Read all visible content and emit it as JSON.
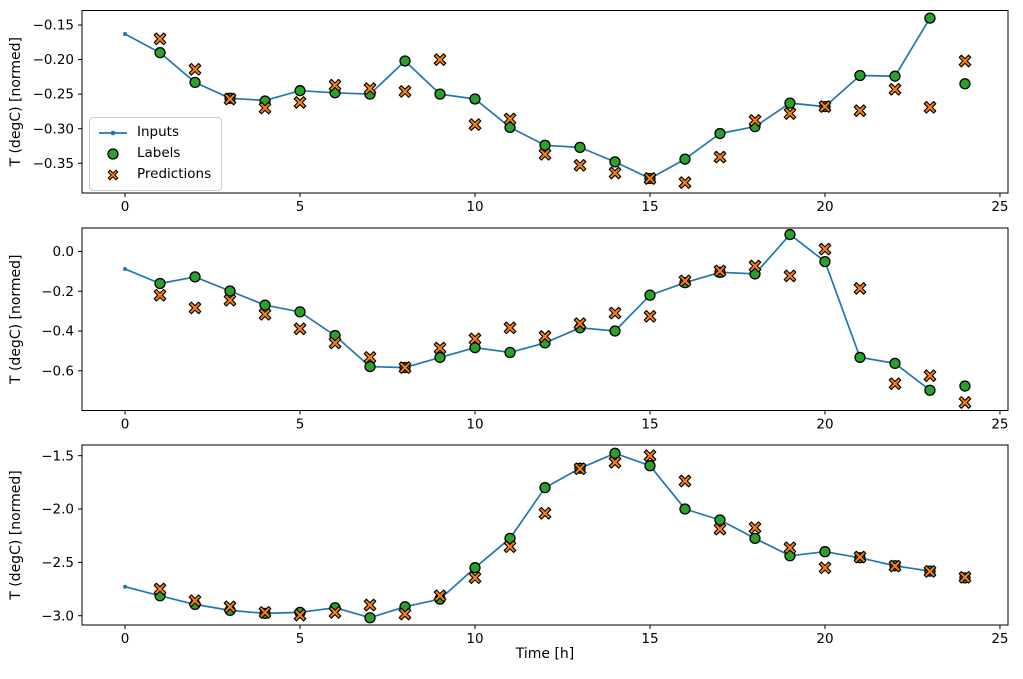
{
  "figure": {
    "xlabel": "Time [h]",
    "ylabel": "T (degC) [normed]",
    "palette": {
      "inputs_line": "#1f77b4",
      "labels_marker": "#2ca02c",
      "predictions_marker": "#ff7f0e",
      "marker_edge": "#000000",
      "background": "#ffffff",
      "legend_border": "#cccccc"
    },
    "legend": {
      "location": "left-middle of first subplot",
      "entries": [
        {
          "label": "Inputs",
          "marker": "line-with-dot"
        },
        {
          "label": "Labels",
          "marker": "filled-circle"
        },
        {
          "label": "Predictions",
          "marker": "thick-x"
        }
      ]
    }
  },
  "chart_data": [
    {
      "type": "line",
      "subplot": 1,
      "ylabel": "T (degC) [normed]",
      "xlabel": "",
      "grid": false,
      "xlim": [
        -1.23,
        25.23
      ],
      "ylim": [
        -0.393,
        -0.129
      ],
      "xticks": [
        0,
        5,
        10,
        15,
        20,
        25
      ],
      "xtick_labels": [
        "0",
        "5",
        "10",
        "15",
        "20",
        "25"
      ],
      "ytick_values": [
        -0.15,
        -0.2,
        -0.25,
        -0.3,
        -0.35
      ],
      "ytick_labels": [
        "−0.15",
        "−0.20",
        "−0.25",
        "−0.30",
        "−0.35"
      ],
      "series": [
        {
          "name": "Inputs",
          "type": "line+dot",
          "x": [
            0,
            1,
            2,
            3,
            4,
            5,
            6,
            7,
            8,
            9,
            10,
            11,
            12,
            13,
            14,
            15,
            16,
            17,
            18,
            19,
            20,
            21,
            22,
            23
          ],
          "y": [
            -0.163,
            -0.19,
            -0.233,
            -0.256,
            -0.259,
            -0.245,
            -0.248,
            -0.25,
            -0.202,
            -0.25,
            -0.257,
            -0.298,
            -0.324,
            -0.327,
            -0.348,
            -0.372,
            -0.344,
            -0.307,
            -0.297,
            -0.263,
            -0.268,
            -0.223,
            -0.224,
            -0.14
          ]
        },
        {
          "name": "Labels",
          "type": "scatter",
          "marker": "circle",
          "x": [
            1,
            2,
            3,
            4,
            5,
            6,
            7,
            8,
            9,
            10,
            11,
            12,
            13,
            14,
            15,
            16,
            17,
            18,
            19,
            20,
            21,
            22,
            23,
            24
          ],
          "y": [
            -0.19,
            -0.233,
            -0.256,
            -0.26,
            -0.245,
            -0.248,
            -0.25,
            -0.202,
            -0.25,
            -0.257,
            -0.298,
            -0.324,
            -0.327,
            -0.348,
            -0.372,
            -0.344,
            -0.307,
            -0.297,
            -0.263,
            -0.268,
            -0.223,
            -0.224,
            -0.14,
            -0.235
          ]
        },
        {
          "name": "Predictions",
          "type": "scatter",
          "marker": "X",
          "x": [
            1,
            2,
            3,
            4,
            5,
            6,
            7,
            8,
            9,
            10,
            11,
            12,
            13,
            14,
            15,
            16,
            17,
            18,
            19,
            20,
            21,
            22,
            23,
            24
          ],
          "y": [
            -0.17,
            -0.214,
            -0.257,
            -0.27,
            -0.262,
            -0.237,
            -0.242,
            -0.246,
            -0.2,
            -0.294,
            -0.286,
            -0.337,
            -0.353,
            -0.364,
            -0.372,
            -0.378,
            -0.341,
            -0.288,
            -0.278,
            -0.268,
            -0.274,
            -0.243,
            -0.269,
            -0.202
          ]
        }
      ]
    },
    {
      "type": "line",
      "subplot": 2,
      "ylabel": "T (degC) [normed]",
      "xlabel": "",
      "grid": false,
      "xlim": [
        -1.23,
        25.23
      ],
      "ylim": [
        -0.8,
        0.118
      ],
      "xticks": [
        0,
        5,
        10,
        15,
        20,
        25
      ],
      "xtick_labels": [
        "0",
        "5",
        "10",
        "15",
        "20",
        "25"
      ],
      "ytick_values": [
        0.0,
        -0.2,
        -0.4,
        -0.6
      ],
      "ytick_labels": [
        "0.0",
        "−0.2",
        "−0.4",
        "−0.6"
      ],
      "series": [
        {
          "name": "Inputs",
          "type": "line+dot",
          "x": [
            0,
            1,
            2,
            3,
            4,
            5,
            6,
            7,
            8,
            9,
            10,
            11,
            12,
            13,
            14,
            15,
            16,
            17,
            18,
            19,
            20,
            21,
            22,
            23
          ],
          "y": [
            -0.088,
            -0.161,
            -0.128,
            -0.199,
            -0.27,
            -0.304,
            -0.423,
            -0.579,
            -0.584,
            -0.533,
            -0.484,
            -0.508,
            -0.46,
            -0.384,
            -0.4,
            -0.22,
            -0.157,
            -0.105,
            -0.113,
            0.085,
            -0.051,
            -0.533,
            -0.563,
            -0.698
          ]
        },
        {
          "name": "Labels",
          "type": "scatter",
          "marker": "circle",
          "x": [
            1,
            2,
            3,
            4,
            5,
            6,
            7,
            8,
            9,
            10,
            11,
            12,
            13,
            14,
            15,
            16,
            17,
            18,
            19,
            20,
            21,
            22,
            23,
            24
          ],
          "y": [
            -0.161,
            -0.128,
            -0.199,
            -0.27,
            -0.304,
            -0.423,
            -0.579,
            -0.584,
            -0.533,
            -0.484,
            -0.508,
            -0.46,
            -0.384,
            -0.4,
            -0.22,
            -0.157,
            -0.105,
            -0.113,
            0.085,
            -0.051,
            -0.533,
            -0.563,
            -0.698,
            -0.677
          ]
        },
        {
          "name": "Predictions",
          "type": "scatter",
          "marker": "X",
          "x": [
            1,
            2,
            3,
            4,
            5,
            6,
            7,
            8,
            9,
            10,
            11,
            12,
            13,
            14,
            15,
            16,
            17,
            18,
            19,
            20,
            21,
            22,
            23,
            24
          ],
          "y": [
            -0.22,
            -0.284,
            -0.245,
            -0.316,
            -0.389,
            -0.46,
            -0.533,
            -0.584,
            -0.486,
            -0.44,
            -0.384,
            -0.428,
            -0.363,
            -0.31,
            -0.326,
            -0.148,
            -0.098,
            -0.073,
            -0.123,
            0.012,
            -0.186,
            -0.665,
            -0.625,
            -0.76
          ]
        }
      ]
    },
    {
      "type": "line",
      "subplot": 3,
      "ylabel": "T (degC) [normed]",
      "xlabel": "Time [h]",
      "grid": false,
      "xlim": [
        -1.23,
        25.23
      ],
      "ylim": [
        -3.087,
        -1.4
      ],
      "xticks": [
        0,
        5,
        10,
        15,
        20,
        25
      ],
      "xtick_labels": [
        "0",
        "5",
        "10",
        "15",
        "20",
        "25"
      ],
      "ytick_values": [
        -1.5,
        -2.0,
        -2.5,
        -3.0
      ],
      "ytick_labels": [
        "−1.5",
        "−2.0",
        "−2.5",
        "−3.0"
      ],
      "series": [
        {
          "name": "Inputs",
          "type": "line+dot",
          "x": [
            0,
            1,
            2,
            3,
            4,
            5,
            6,
            7,
            8,
            9,
            10,
            11,
            12,
            13,
            14,
            15,
            16,
            17,
            18,
            19,
            20,
            21,
            22,
            23
          ],
          "y": [
            -2.728,
            -2.813,
            -2.894,
            -2.95,
            -2.978,
            -2.969,
            -2.925,
            -3.019,
            -2.916,
            -2.844,
            -2.55,
            -2.275,
            -1.8,
            -1.618,
            -1.478,
            -1.594,
            -2.0,
            -2.103,
            -2.275,
            -2.438,
            -2.4,
            -2.457,
            -2.532,
            -2.582
          ]
        },
        {
          "name": "Labels",
          "type": "scatter",
          "marker": "circle",
          "x": [
            1,
            2,
            3,
            4,
            5,
            6,
            7,
            8,
            9,
            10,
            11,
            12,
            13,
            14,
            15,
            16,
            17,
            18,
            19,
            20,
            21,
            22,
            23,
            24
          ],
          "y": [
            -2.813,
            -2.894,
            -2.95,
            -2.978,
            -2.969,
            -2.925,
            -3.019,
            -2.916,
            -2.844,
            -2.55,
            -2.275,
            -1.8,
            -1.618,
            -1.478,
            -1.594,
            -2.0,
            -2.103,
            -2.275,
            -2.438,
            -2.4,
            -2.457,
            -2.532,
            -2.582,
            -2.645
          ]
        },
        {
          "name": "Predictions",
          "type": "scatter",
          "marker": "X",
          "x": [
            1,
            2,
            3,
            4,
            5,
            6,
            7,
            8,
            9,
            10,
            11,
            12,
            13,
            14,
            15,
            16,
            17,
            18,
            19,
            20,
            21,
            22,
            23,
            24
          ],
          "y": [
            -2.75,
            -2.859,
            -2.916,
            -2.969,
            -2.994,
            -2.969,
            -2.9,
            -2.984,
            -2.813,
            -2.644,
            -2.353,
            -2.04,
            -1.622,
            -1.562,
            -1.5,
            -1.737,
            -2.188,
            -2.175,
            -2.363,
            -2.551,
            -2.45,
            -2.535,
            -2.585,
            -2.64
          ]
        }
      ]
    }
  ]
}
